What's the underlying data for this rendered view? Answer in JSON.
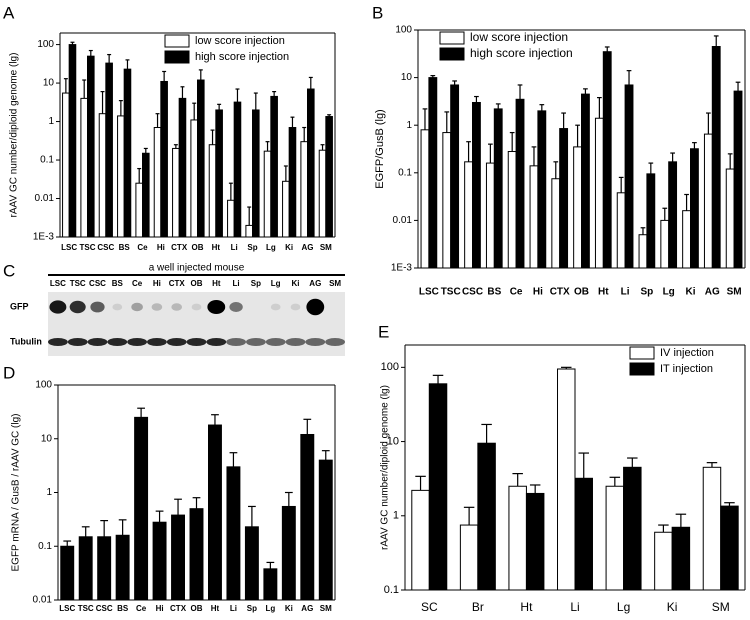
{
  "chart_data": [
    {
      "panel": "A",
      "type": "bar",
      "ylabel": "rAAV GC number/diploid genome (lg)",
      "log_scale": true,
      "legend": "upper right",
      "categories": [
        "LSC",
        "TSC",
        "CSC",
        "BS",
        "Ce",
        "Hi",
        "CTX",
        "OB",
        "Ht",
        "Li",
        "Sp",
        "Lg",
        "Ki",
        "AG",
        "SM"
      ],
      "ylim": [
        0.001,
        200
      ],
      "yticks": [
        {
          "value": 0.001,
          "label": "1E-3"
        },
        0.01,
        0.1,
        1,
        10,
        100
      ],
      "series": [
        {
          "name": "low score injection",
          "color": "#ffffff",
          "values": [
            5.5,
            4,
            1.6,
            1.4,
            0.025,
            0.7,
            0.2,
            1.1,
            0.25,
            0.009,
            0.002,
            0.17,
            0.028,
            0.3,
            0.18
          ],
          "errors": [
            7.5,
            8,
            4.4,
            2.1,
            0.035,
            0.9,
            0.05,
            1.9,
            0.35,
            0.016,
            0.004,
            0.13,
            0.042,
            0.4,
            0.07
          ]
        },
        {
          "name": "high score injection",
          "color": "#000000",
          "values": [
            100,
            50,
            33,
            23,
            0.15,
            11,
            4,
            12,
            2,
            3.2,
            2,
            4.5,
            0.7,
            7,
            1.35
          ],
          "errors": [
            15,
            20,
            22,
            17,
            0.05,
            9,
            4,
            10,
            0.8,
            3.8,
            3.5,
            1.5,
            0.6,
            7,
            0.15
          ]
        }
      ]
    },
    {
      "panel": "B",
      "type": "bar",
      "ylabel": "EGFP/GusB (lg)",
      "log_scale": true,
      "legend": "upper left",
      "categories": [
        "LSC",
        "TSC",
        "CSC",
        "BS",
        "Ce",
        "Hi",
        "CTX",
        "OB",
        "Ht",
        "Li",
        "Sp",
        "Lg",
        "Ki",
        "AG",
        "SM"
      ],
      "ylim": [
        0.001,
        100
      ],
      "yticks": [
        {
          "value": 0.001,
          "label": "1E-3"
        },
        0.01,
        0.1,
        1,
        10,
        100
      ],
      "series": [
        {
          "name": "low score injection",
          "color": "#ffffff",
          "values": [
            0.8,
            0.7,
            0.17,
            0.16,
            0.28,
            0.14,
            0.075,
            0.35,
            1.4,
            0.038,
            0.005,
            0.01,
            0.016,
            0.65,
            0.12
          ],
          "errors": [
            1.4,
            1.2,
            0.28,
            0.24,
            0.42,
            0.21,
            0.095,
            0.65,
            2.4,
            0.042,
            0.002,
            0.008,
            0.019,
            1.15,
            0.13
          ]
        },
        {
          "name": "high score injection",
          "color": "#000000",
          "values": [
            10,
            7,
            3,
            2.2,
            3.5,
            2,
            0.85,
            4.5,
            35,
            7,
            0.095,
            0.17,
            0.32,
            45,
            5.2
          ],
          "errors": [
            1,
            1.5,
            1,
            0.6,
            3.5,
            0.7,
            0.95,
            1.3,
            9,
            7,
            0.065,
            0.09,
            0.11,
            30,
            2.8
          ]
        }
      ]
    },
    {
      "panel": "C",
      "type": "blot",
      "title": "a well injected mouse",
      "lanes": [
        "LSC",
        "TSC",
        "CSC",
        "BS",
        "Ce",
        "Hi",
        "CTX",
        "OB",
        "Ht",
        "Li",
        "Sp",
        "Lg",
        "Ki",
        "AG",
        "SM"
      ],
      "rows": [
        "GFP",
        "Tubulin"
      ]
    },
    {
      "panel": "D",
      "type": "bar",
      "ylabel": "EGFP mRNA / GusB / rAAV GC (lg)",
      "log_scale": true,
      "categories": [
        "LSC",
        "TSC",
        "CSC",
        "BS",
        "Ce",
        "Hi",
        "CTX",
        "OB",
        "Ht",
        "Li",
        "Sp",
        "Lg",
        "Ki",
        "AG",
        "SM"
      ],
      "ylim": [
        0.01,
        100
      ],
      "yticks": [
        0.01,
        0.1,
        1,
        10,
        100
      ],
      "series": [
        {
          "color": "#000000",
          "values": [
            0.1,
            0.15,
            0.15,
            0.16,
            25,
            0.28,
            0.38,
            0.5,
            18,
            3,
            0.23,
            0.038,
            0.55,
            12,
            4
          ],
          "errors": [
            0.025,
            0.08,
            0.15,
            0.15,
            12,
            0.17,
            0.37,
            0.3,
            10,
            2.5,
            0.32,
            0.012,
            0.45,
            11,
            2
          ]
        }
      ]
    },
    {
      "panel": "E",
      "type": "bar",
      "ylabel": "rAAV GC number/diploid genome (lg)",
      "log_scale": true,
      "legend": "upper right",
      "categories": [
        "SC",
        "Br",
        "Ht",
        "Li",
        "Lg",
        "Ki",
        "SM"
      ],
      "ylim": [
        0.1,
        200
      ],
      "yticks": [
        0.1,
        1,
        10,
        100
      ],
      "series": [
        {
          "name": "IV injection",
          "color": "#ffffff",
          "values": [
            2.2,
            0.75,
            2.5,
            95,
            2.5,
            0.6,
            4.5
          ],
          "errors": [
            1.2,
            0.55,
            1.2,
            5,
            0.8,
            0.15,
            0.7
          ]
        },
        {
          "name": "IT injection",
          "color": "#000000",
          "values": [
            60,
            9.5,
            2,
            3.2,
            4.5,
            0.7,
            1.35
          ],
          "errors": [
            18,
            7.5,
            0.6,
            3.8,
            1.5,
            0.35,
            0.15
          ]
        }
      ]
    }
  ]
}
